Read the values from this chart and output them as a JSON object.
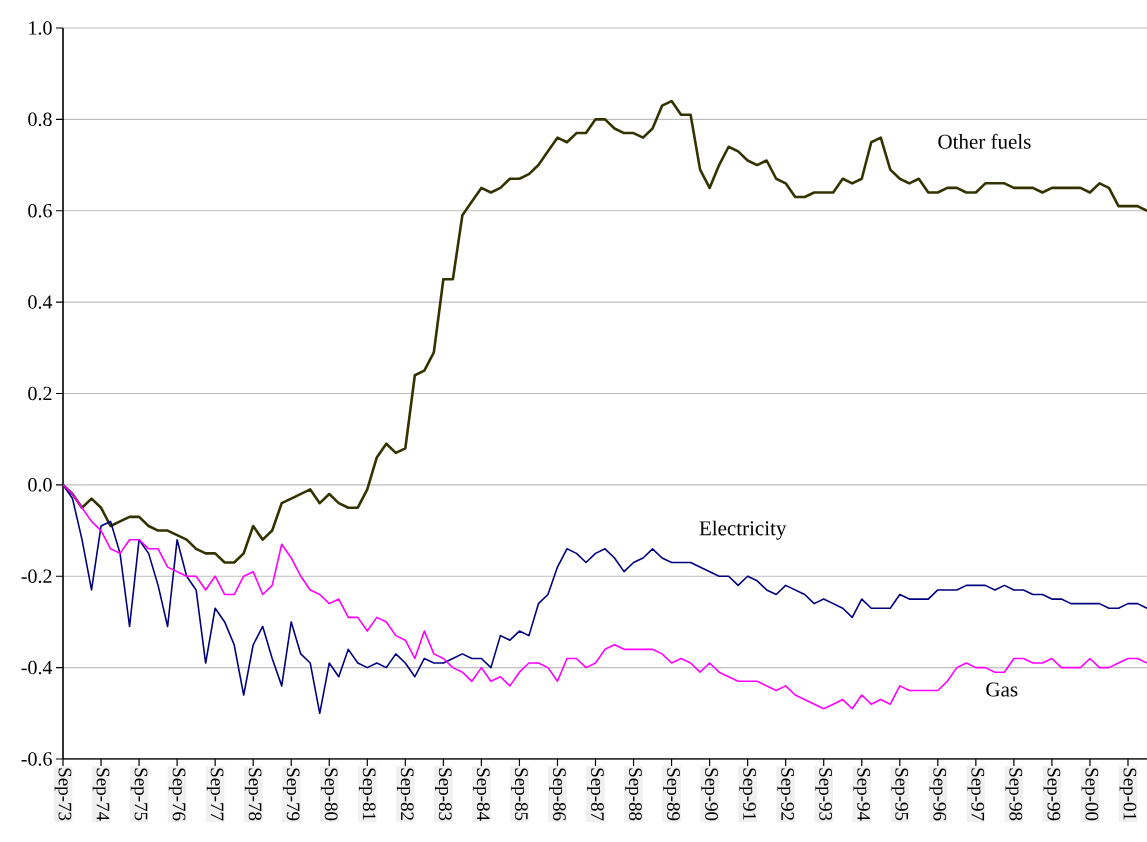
{
  "chart_data": {
    "type": "line",
    "categories": [
      "Sep-73",
      null,
      null,
      null,
      "Sep-74",
      null,
      null,
      null,
      "Sep-75",
      null,
      null,
      null,
      "Sep-76",
      null,
      null,
      null,
      "Sep-77",
      null,
      null,
      null,
      "Sep-78",
      null,
      null,
      null,
      "Sep-79",
      null,
      null,
      null,
      "Sep-80",
      null,
      null,
      null,
      "Sep-81",
      null,
      null,
      null,
      "Sep-82",
      null,
      null,
      null,
      "Sep-83",
      null,
      null,
      null,
      "Sep-84",
      null,
      null,
      null,
      "Sep-85",
      null,
      null,
      null,
      "Sep-86",
      null,
      null,
      null,
      "Sep-87",
      null,
      null,
      null,
      "Sep-88",
      null,
      null,
      null,
      "Sep-89",
      null,
      null,
      null,
      "Sep-90",
      null,
      null,
      null,
      "Sep-91",
      null,
      null,
      null,
      "Sep-92",
      null,
      null,
      null,
      "Sep-93",
      null,
      null,
      null,
      "Sep-94",
      null,
      null,
      null,
      "Sep-95",
      null,
      null,
      null,
      "Sep-96",
      null,
      null,
      null,
      "Sep-97",
      null,
      null,
      null,
      "Sep-98",
      null,
      null,
      null,
      "Sep-99",
      null,
      null,
      null,
      "Sep-00",
      null,
      null,
      null,
      "Sep-01",
      null,
      null
    ],
    "series": [
      {
        "name": "Other fuels",
        "color": "#333300",
        "values": [
          0,
          -0.02,
          -0.05,
          -0.03,
          -0.05,
          -0.09,
          -0.08,
          -0.07,
          -0.07,
          -0.09,
          -0.1,
          -0.1,
          -0.11,
          -0.12,
          -0.14,
          -0.15,
          -0.15,
          -0.17,
          -0.17,
          -0.15,
          -0.09,
          -0.12,
          -0.1,
          -0.04,
          -0.03,
          -0.02,
          -0.01,
          -0.04,
          -0.02,
          -0.04,
          -0.05,
          -0.05,
          -0.01,
          0.06,
          0.09,
          0.07,
          0.08,
          0.24,
          0.25,
          0.29,
          0.45,
          0.45,
          0.59,
          0.62,
          0.65,
          0.64,
          0.65,
          0.67,
          0.67,
          0.68,
          0.7,
          0.73,
          0.76,
          0.75,
          0.77,
          0.77,
          0.8,
          0.8,
          0.78,
          0.77,
          0.77,
          0.76,
          0.78,
          0.83,
          0.84,
          0.81,
          0.81,
          0.69,
          0.65,
          0.7,
          0.74,
          0.73,
          0.71,
          0.7,
          0.71,
          0.67,
          0.66,
          0.63,
          0.63,
          0.64,
          0.64,
          0.64,
          0.67,
          0.66,
          0.67,
          0.75,
          0.76,
          0.69,
          0.67,
          0.66,
          0.67,
          0.64,
          0.64,
          0.65,
          0.65,
          0.64,
          0.64,
          0.66,
          0.66,
          0.66,
          0.65,
          0.65,
          0.65,
          0.64,
          0.65,
          0.65,
          0.65,
          0.65,
          0.64,
          0.66,
          0.65,
          0.61,
          0.61,
          0.61,
          0.6
        ]
      },
      {
        "name": "Electricity",
        "color": "#000080",
        "values": [
          0,
          -0.03,
          -0.12,
          -0.23,
          -0.09,
          -0.08,
          -0.15,
          -0.31,
          -0.12,
          -0.15,
          -0.22,
          -0.31,
          -0.12,
          -0.2,
          -0.23,
          -0.39,
          -0.27,
          -0.3,
          -0.35,
          -0.46,
          -0.35,
          -0.31,
          -0.38,
          -0.44,
          -0.3,
          -0.37,
          -0.39,
          -0.5,
          -0.39,
          -0.42,
          -0.36,
          -0.39,
          -0.4,
          -0.39,
          -0.4,
          -0.37,
          -0.39,
          -0.42,
          -0.38,
          -0.39,
          -0.39,
          -0.38,
          -0.37,
          -0.38,
          -0.38,
          -0.4,
          -0.33,
          -0.34,
          -0.32,
          -0.33,
          -0.26,
          -0.24,
          -0.18,
          -0.14,
          -0.15,
          -0.17,
          -0.15,
          -0.14,
          -0.16,
          -0.19,
          -0.17,
          -0.16,
          -0.14,
          -0.16,
          -0.17,
          -0.17,
          -0.17,
          -0.18,
          -0.19,
          -0.2,
          -0.2,
          -0.22,
          -0.2,
          -0.21,
          -0.23,
          -0.24,
          -0.22,
          -0.23,
          -0.24,
          -0.26,
          -0.25,
          -0.26,
          -0.27,
          -0.29,
          -0.25,
          -0.27,
          -0.27,
          -0.27,
          -0.24,
          -0.25,
          -0.25,
          -0.25,
          -0.23,
          -0.23,
          -0.23,
          -0.22,
          -0.22,
          -0.22,
          -0.23,
          -0.22,
          -0.23,
          -0.23,
          -0.24,
          -0.24,
          -0.25,
          -0.25,
          -0.26,
          -0.26,
          -0.26,
          -0.26,
          -0.27,
          -0.27,
          -0.26,
          -0.26,
          -0.27
        ]
      },
      {
        "name": "Gas",
        "color": "#ff00ff",
        "values": [
          0,
          -0.02,
          -0.05,
          -0.08,
          -0.1,
          -0.14,
          -0.15,
          -0.12,
          -0.12,
          -0.14,
          -0.14,
          -0.18,
          -0.19,
          -0.2,
          -0.2,
          -0.23,
          -0.2,
          -0.24,
          -0.24,
          -0.2,
          -0.19,
          -0.24,
          -0.22,
          -0.13,
          -0.16,
          -0.2,
          -0.23,
          -0.24,
          -0.26,
          -0.25,
          -0.29,
          -0.29,
          -0.32,
          -0.29,
          -0.3,
          -0.33,
          -0.34,
          -0.38,
          -0.32,
          -0.37,
          -0.38,
          -0.4,
          -0.41,
          -0.43,
          -0.4,
          -0.43,
          -0.42,
          -0.44,
          -0.41,
          -0.39,
          -0.39,
          -0.4,
          -0.43,
          -0.38,
          -0.38,
          -0.4,
          -0.39,
          -0.36,
          -0.35,
          -0.36,
          -0.36,
          -0.36,
          -0.36,
          -0.37,
          -0.39,
          -0.38,
          -0.39,
          -0.41,
          -0.39,
          -0.41,
          -0.42,
          -0.43,
          -0.43,
          -0.43,
          -0.44,
          -0.45,
          -0.44,
          -0.46,
          -0.47,
          -0.48,
          -0.49,
          -0.48,
          -0.47,
          -0.49,
          -0.46,
          -0.48,
          -0.47,
          -0.48,
          -0.44,
          -0.45,
          -0.45,
          -0.45,
          -0.45,
          -0.43,
          -0.4,
          -0.39,
          -0.4,
          -0.4,
          -0.41,
          -0.41,
          -0.38,
          -0.38,
          -0.39,
          -0.39,
          -0.38,
          -0.4,
          -0.4,
          -0.4,
          -0.38,
          -0.4,
          -0.4,
          -0.39,
          -0.38,
          -0.38,
          -0.39
        ]
      }
    ],
    "ylim": [
      -0.6,
      1.0
    ],
    "yticks": [
      {
        "value": -0.6,
        "label": "-0.6"
      },
      {
        "value": -0.4,
        "label": "-0.4"
      },
      {
        "value": -0.2,
        "label": "-0.2"
      },
      {
        "value": 0,
        "label": "0.0"
      },
      {
        "value": 0.2,
        "label": "0.2"
      },
      {
        "value": 0.4,
        "label": "0.4"
      },
      {
        "value": 0.6,
        "label": "0.6"
      },
      {
        "value": 0.8,
        "label": "0.8"
      },
      {
        "value": 1.0,
        "label": "1.0"
      }
    ],
    "grid": "y",
    "line_style": "solid"
  }
}
